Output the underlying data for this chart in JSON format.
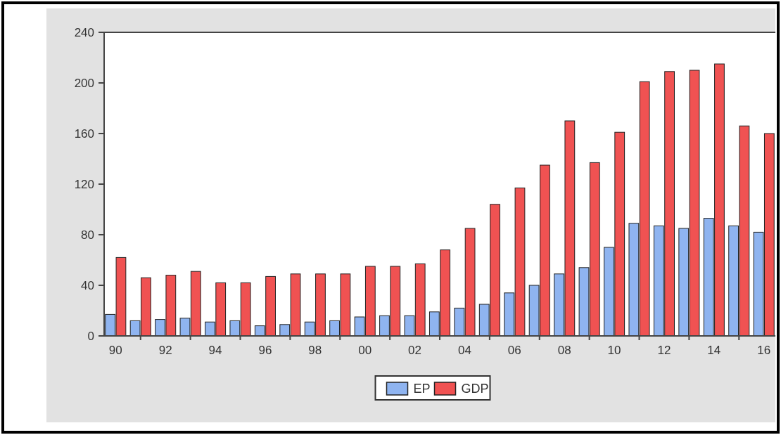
{
  "chart_data": {
    "type": "bar",
    "categories": [
      "90",
      null,
      "92",
      null,
      "94",
      null,
      "96",
      null,
      "98",
      null,
      "00",
      null,
      "02",
      null,
      "04",
      null,
      "06",
      null,
      "08",
      null,
      "10",
      null,
      "12",
      null,
      "14",
      null,
      "16"
    ],
    "series": [
      {
        "name": "EP",
        "color": "#8fb4f0",
        "values": [
          17,
          12,
          13,
          14,
          11,
          12,
          8,
          9,
          11,
          12,
          15,
          16,
          16,
          19,
          22,
          25,
          34,
          40,
          49,
          54,
          70,
          89,
          87,
          85,
          93,
          87,
          82
        ]
      },
      {
        "name": "GDP",
        "color": "#f05252",
        "values": [
          62,
          46,
          48,
          51,
          42,
          42,
          47,
          49,
          49,
          49,
          55,
          55,
          57,
          68,
          85,
          104,
          117,
          135,
          170,
          137,
          161,
          201,
          209,
          210,
          215,
          166,
          160
        ]
      }
    ],
    "ylim": [
      0,
      240
    ],
    "yticks": [
      0,
      40,
      80,
      120,
      160,
      200,
      240
    ],
    "grid": false,
    "legend": "bottom"
  }
}
